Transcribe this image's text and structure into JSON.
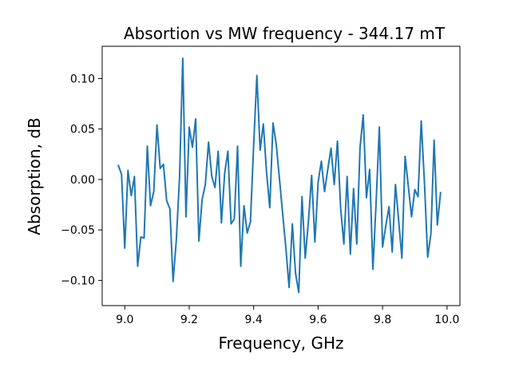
{
  "chart_data": {
    "type": "line",
    "title": "Absortion vs MW frequency - 344.17 mT",
    "xlabel": "Frequency, GHz",
    "ylabel": "Absorption, dB",
    "xlim": [
      8.93,
      10.04
    ],
    "ylim": [
      -0.125,
      0.132
    ],
    "xticks": [
      9.0,
      9.2,
      9.4,
      9.6,
      9.8,
      10.0
    ],
    "xtick_labels": [
      "9.0",
      "9.2",
      "9.4",
      "9.6",
      "9.8",
      "10.0"
    ],
    "yticks": [
      -0.1,
      -0.05,
      0.0,
      0.05,
      0.1
    ],
    "ytick_labels": [
      "−0.10",
      "−0.05",
      "0.00",
      "0.05",
      "0.10"
    ],
    "grid": false,
    "legend": "none",
    "series_color": "#1f77b4",
    "series": [
      {
        "x": [
          8.98,
          8.99,
          9.0,
          9.01,
          9.02,
          9.03,
          9.04,
          9.05,
          9.06,
          9.07,
          9.08,
          9.09,
          9.1,
          9.11,
          9.12,
          9.13,
          9.14,
          9.15,
          9.16,
          9.17,
          9.18,
          9.19,
          9.2,
          9.21,
          9.22,
          9.23,
          9.24,
          9.25,
          9.26,
          9.27,
          9.28,
          9.29,
          9.3,
          9.31,
          9.32,
          9.33,
          9.34,
          9.35,
          9.36,
          9.37,
          9.38,
          9.39,
          9.4,
          9.41,
          9.42,
          9.43,
          9.44,
          9.45,
          9.46,
          9.47,
          9.48,
          9.49,
          9.5,
          9.51,
          9.52,
          9.53,
          9.54,
          9.55,
          9.56,
          9.57,
          9.58,
          9.59,
          9.6,
          9.61,
          9.62,
          9.63,
          9.64,
          9.65,
          9.66,
          9.67,
          9.68,
          9.69,
          9.7,
          9.71,
          9.72,
          9.73,
          9.74,
          9.75,
          9.76,
          9.77,
          9.78,
          9.79,
          9.8,
          9.81,
          9.82,
          9.83,
          9.84,
          9.85,
          9.86,
          9.87,
          9.88,
          9.89,
          9.9,
          9.91,
          9.92,
          9.93,
          9.94,
          9.95,
          9.96,
          9.97,
          9.98
        ],
        "y": [
          0.014,
          0.005,
          -0.068,
          0.009,
          -0.016,
          0.003,
          -0.086,
          -0.057,
          -0.058,
          0.033,
          -0.026,
          -0.012,
          0.054,
          0.011,
          0.015,
          -0.021,
          -0.029,
          -0.101,
          -0.06,
          0.002,
          0.12,
          -0.037,
          0.052,
          0.032,
          0.06,
          -0.061,
          -0.02,
          -0.005,
          0.037,
          0.003,
          -0.008,
          0.028,
          -0.043,
          0.006,
          0.028,
          -0.044,
          -0.039,
          0.033,
          -0.086,
          -0.026,
          -0.053,
          -0.042,
          0.034,
          0.103,
          0.029,
          0.055,
          0.007,
          -0.028,
          0.056,
          0.035,
          0.001,
          -0.034,
          -0.068,
          -0.107,
          -0.044,
          -0.093,
          -0.112,
          -0.017,
          -0.078,
          -0.041,
          0.004,
          -0.062,
          -0.003,
          0.018,
          -0.012,
          0.01,
          0.031,
          -0.005,
          0.038,
          -0.029,
          -0.064,
          0.003,
          -0.074,
          -0.009,
          -0.064,
          0.031,
          0.064,
          -0.018,
          0.01,
          -0.089,
          -0.023,
          0.052,
          -0.067,
          -0.046,
          -0.027,
          -0.072,
          -0.005,
          -0.041,
          -0.078,
          0.023,
          -0.007,
          -0.037,
          -0.01,
          -0.017,
          0.058,
          -0.003,
          -0.077,
          -0.054,
          0.039,
          -0.045,
          -0.013
        ]
      }
    ]
  }
}
